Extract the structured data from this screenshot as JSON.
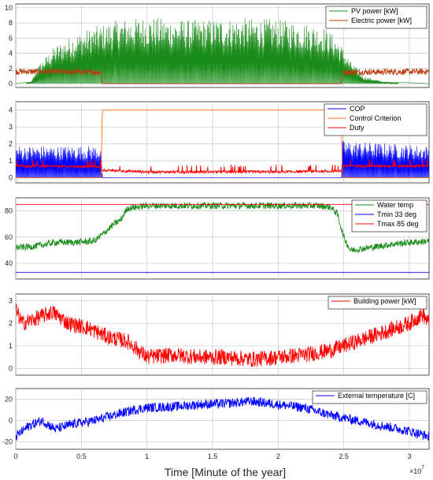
{
  "figure": {
    "xlabel": "Time [Minute of the year]",
    "x_exponent_label": "×10",
    "x_exponent_power": "7"
  },
  "colors": {
    "green": "#1a8c1a",
    "brown": "#b8390c",
    "blue": "#0000ff",
    "orange": "#ff6a1a",
    "red": "#ff0000",
    "grid": "#c8c8c8"
  },
  "chart_data": [
    {
      "type": "line",
      "ylim": [
        -0.5,
        10.5
      ],
      "yticks": [
        0,
        2,
        4,
        6,
        8,
        10
      ],
      "xlim": [
        0,
        3.15
      ],
      "xticks": [
        0,
        0.5,
        1,
        1.5,
        2,
        2.5,
        3
      ],
      "grid": true,
      "legend_position": "top-right",
      "series": [
        {
          "name": "PV power [kW]",
          "color": "#1a8c1a",
          "values": [
            [
              0,
              0
            ],
            [
              0.12,
              0.3
            ],
            [
              0.16,
              2.0
            ],
            [
              0.2,
              3.0
            ],
            [
              0.3,
              5.0
            ],
            [
              0.45,
              6.5
            ],
            [
              0.6,
              7.5
            ],
            [
              0.8,
              8.5
            ],
            [
              1.0,
              8.8
            ],
            [
              1.2,
              8.5
            ],
            [
              1.4,
              8.4
            ],
            [
              1.6,
              8.6
            ],
            [
              1.8,
              8.6
            ],
            [
              2.0,
              8.5
            ],
            [
              2.2,
              8.0
            ],
            [
              2.35,
              7.5
            ],
            [
              2.45,
              6.0
            ],
            [
              2.55,
              3.0
            ],
            [
              2.65,
              1.0
            ],
            [
              2.8,
              0.3
            ],
            [
              3.15,
              0
            ]
          ]
        },
        {
          "name": "Electric power [kW]",
          "color": "#b8390c",
          "values": [
            [
              0,
              2.0
            ],
            [
              0.65,
              1.9
            ],
            [
              0.66,
              0
            ],
            [
              2.48,
              0
            ],
            [
              2.49,
              1.9
            ],
            [
              3.15,
              2.0
            ]
          ]
        }
      ]
    },
    {
      "type": "line",
      "ylim": [
        -0.3,
        4.5
      ],
      "yticks": [
        0,
        1,
        2,
        3,
        4
      ],
      "xlim": [
        0,
        3.15
      ],
      "xticks": [
        0,
        0.5,
        1,
        1.5,
        2,
        2.5,
        3
      ],
      "grid": true,
      "legend_position": "top-right",
      "series": [
        {
          "name": "COP",
          "color": "#0000ff",
          "values": [
            [
              0,
              1.8
            ],
            [
              0.65,
              1.8
            ],
            [
              0.66,
              0
            ],
            [
              2.48,
              0
            ],
            [
              2.49,
              2.1
            ],
            [
              3.15,
              1.8
            ]
          ]
        },
        {
          "name": "Control Criterion",
          "color": "#ff6a1a",
          "values": [
            [
              0,
              0
            ],
            [
              0.65,
              0
            ],
            [
              0.66,
              4.0
            ],
            [
              2.48,
              4.0
            ],
            [
              2.49,
              0
            ],
            [
              3.15,
              0
            ]
          ]
        },
        {
          "name": "Duty",
          "color": "#ff0000",
          "values": [
            [
              0,
              0.7
            ],
            [
              0.65,
              0.65
            ],
            [
              0.66,
              0.45
            ],
            [
              1.0,
              0.35
            ],
            [
              1.5,
              0.35
            ],
            [
              2.0,
              0.35
            ],
            [
              2.48,
              0.4
            ],
            [
              2.49,
              0.7
            ],
            [
              3.15,
              0.7
            ]
          ]
        }
      ]
    },
    {
      "type": "line",
      "ylim": [
        28,
        90
      ],
      "yticks": [
        40,
        60,
        80
      ],
      "xlim": [
        0,
        3.15
      ],
      "xticks": [
        0,
        0.5,
        1,
        1.5,
        2,
        2.5,
        3
      ],
      "grid": true,
      "legend_position": "top-right",
      "series": [
        {
          "name": "Water temp",
          "color": "#1a8c1a",
          "values": [
            [
              0,
              52
            ],
            [
              0.15,
              53
            ],
            [
              0.3,
              56
            ],
            [
              0.45,
              56
            ],
            [
              0.6,
              57
            ],
            [
              0.66,
              62
            ],
            [
              0.75,
              70
            ],
            [
              0.8,
              73
            ],
            [
              0.85,
              82
            ],
            [
              1.0,
              84
            ],
            [
              1.5,
              84
            ],
            [
              2.0,
              84
            ],
            [
              2.3,
              84
            ],
            [
              2.4,
              83
            ],
            [
              2.45,
              78
            ],
            [
              2.5,
              60
            ],
            [
              2.55,
              50
            ],
            [
              2.7,
              52
            ],
            [
              2.9,
              55
            ],
            [
              3.15,
              57
            ]
          ]
        },
        {
          "name": "Tmin 33 deg",
          "color": "#0000ff",
          "values": [
            [
              0,
              33
            ],
            [
              3.15,
              33
            ]
          ]
        },
        {
          "name": "Tmax 85 deg",
          "color": "#ff0000",
          "values": [
            [
              0,
              85
            ],
            [
              3.15,
              85
            ]
          ]
        }
      ]
    },
    {
      "type": "line",
      "ylim": [
        -0.3,
        3.3
      ],
      "yticks": [
        0,
        1,
        2,
        3
      ],
      "xlim": [
        0,
        3.15
      ],
      "xticks": [
        0,
        0.5,
        1,
        1.5,
        2,
        2.5,
        3
      ],
      "grid": true,
      "legend_position": "top-right",
      "series": [
        {
          "name": "Building power [kW]",
          "color": "#ff0000",
          "values": [
            [
              0,
              2.6
            ],
            [
              0.05,
              2.0
            ],
            [
              0.15,
              2.2
            ],
            [
              0.28,
              2.5
            ],
            [
              0.4,
              2.0
            ],
            [
              0.55,
              1.8
            ],
            [
              0.7,
              1.4
            ],
            [
              0.85,
              1.2
            ],
            [
              1.0,
              0.5
            ],
            [
              1.2,
              0.6
            ],
            [
              1.4,
              0.5
            ],
            [
              1.6,
              0.5
            ],
            [
              1.8,
              0.4
            ],
            [
              2.0,
              0.5
            ],
            [
              2.2,
              0.6
            ],
            [
              2.4,
              0.8
            ],
            [
              2.6,
              1.2
            ],
            [
              2.8,
              1.6
            ],
            [
              3.0,
              2.0
            ],
            [
              3.1,
              2.4
            ],
            [
              3.15,
              2.0
            ]
          ]
        }
      ]
    },
    {
      "type": "line",
      "ylim": [
        -27,
        30
      ],
      "yticks": [
        -20,
        0,
        20
      ],
      "xlim": [
        0,
        3.15
      ],
      "xticks": [
        0,
        0.5,
        1,
        1.5,
        2,
        2.5,
        3
      ],
      "grid": true,
      "legend_position": "top-right",
      "series": [
        {
          "name": "External temperature [C]",
          "color": "#0000ff",
          "values": [
            [
              0,
              -15
            ],
            [
              0.1,
              -5
            ],
            [
              0.2,
              0
            ],
            [
              0.3,
              -8
            ],
            [
              0.45,
              -3
            ],
            [
              0.6,
              0
            ],
            [
              0.75,
              5
            ],
            [
              0.9,
              10
            ],
            [
              1.0,
              12
            ],
            [
              1.2,
              13
            ],
            [
              1.4,
              15
            ],
            [
              1.6,
              16
            ],
            [
              1.8,
              18
            ],
            [
              2.0,
              15
            ],
            [
              2.2,
              12
            ],
            [
              2.4,
              5
            ],
            [
              2.6,
              0
            ],
            [
              2.8,
              -5
            ],
            [
              3.0,
              -10
            ],
            [
              3.15,
              -15
            ]
          ]
        }
      ]
    }
  ]
}
